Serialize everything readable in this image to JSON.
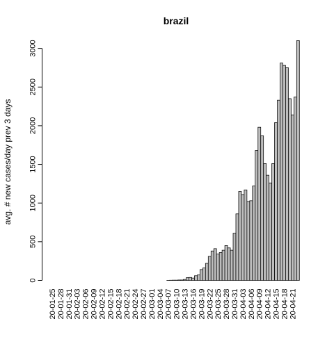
{
  "chart_data": {
    "type": "bar",
    "title": "brazil",
    "xlabel": "",
    "ylabel": "avg. # new cases/day prev  3  days",
    "ylim": [
      0,
      3100
    ],
    "y_ticks": [
      0,
      500,
      1000,
      1500,
      2000,
      2500,
      3000
    ],
    "x_tick_labels": [
      "20-01-25",
      "20-01-28",
      "20-01-31",
      "20-02-03",
      "20-02-06",
      "20-02-09",
      "20-02-12",
      "20-02-15",
      "20-02-18",
      "20-02-21",
      "20-02-24",
      "20-02-27",
      "20-03-01",
      "20-03-04",
      "20-03-07",
      "20-03-10",
      "20-03-13",
      "20-03-16",
      "20-03-19",
      "20-03-22",
      "20-03-25",
      "20-03-28",
      "20-03-31",
      "20-04-03",
      "20-04-06",
      "20-04-09",
      "20-04-12",
      "20-04-15",
      "20-04-18",
      "20-04-21"
    ],
    "categories": [
      "20-01-25",
      "20-01-26",
      "20-01-27",
      "20-01-28",
      "20-01-29",
      "20-01-30",
      "20-01-31",
      "20-02-01",
      "20-02-02",
      "20-02-03",
      "20-02-04",
      "20-02-05",
      "20-02-06",
      "20-02-07",
      "20-02-08",
      "20-02-09",
      "20-02-10",
      "20-02-11",
      "20-02-12",
      "20-02-13",
      "20-02-14",
      "20-02-15",
      "20-02-16",
      "20-02-17",
      "20-02-18",
      "20-02-19",
      "20-02-20",
      "20-02-21",
      "20-02-22",
      "20-02-23",
      "20-02-24",
      "20-02-25",
      "20-02-26",
      "20-02-27",
      "20-02-28",
      "20-02-29",
      "20-03-01",
      "20-03-02",
      "20-03-03",
      "20-03-04",
      "20-03-05",
      "20-03-06",
      "20-03-07",
      "20-03-08",
      "20-03-09",
      "20-03-10",
      "20-03-11",
      "20-03-12",
      "20-03-13",
      "20-03-14",
      "20-03-15",
      "20-03-16",
      "20-03-17",
      "20-03-18",
      "20-03-19",
      "20-03-20",
      "20-03-21",
      "20-03-22",
      "20-03-23",
      "20-03-24",
      "20-03-25",
      "20-03-26",
      "20-03-27",
      "20-03-28",
      "20-03-29",
      "20-03-30",
      "20-03-31",
      "20-04-01",
      "20-04-02",
      "20-04-03",
      "20-04-04",
      "20-04-05",
      "20-04-06",
      "20-04-07",
      "20-04-08",
      "20-04-09",
      "20-04-10",
      "20-04-11",
      "20-04-12",
      "20-04-13",
      "20-04-14",
      "20-04-15",
      "20-04-16",
      "20-04-17",
      "20-04-18",
      "20-04-19",
      "20-04-20",
      "20-04-21",
      "20-04-22",
      "20-04-23"
    ],
    "values": [
      0,
      0,
      0,
      0,
      0,
      0,
      0,
      0,
      0,
      0,
      0,
      0,
      0,
      0,
      0,
      0,
      0,
      0,
      0,
      0,
      0,
      0,
      0,
      0,
      0,
      0,
      0,
      0,
      0,
      0,
      0,
      0,
      0,
      0,
      0,
      0,
      0,
      0,
      0,
      0,
      0,
      0,
      1,
      2,
      3,
      3,
      5,
      5,
      12,
      35,
      38,
      30,
      60,
      70,
      140,
      160,
      220,
      310,
      380,
      410,
      340,
      360,
      390,
      450,
      420,
      390,
      610,
      860,
      1150,
      1110,
      1170,
      1020,
      1030,
      1220,
      1680,
      1980,
      1870,
      1510,
      1360,
      1260,
      1510,
      2040,
      2330,
      2810,
      2780,
      2750,
      2350,
      2140,
      2370,
      3100
    ],
    "grid": false,
    "legend": "none",
    "colors": {
      "bar_fill": "#bebebe",
      "bar_stroke": "#000000",
      "axis": "#000000"
    }
  }
}
